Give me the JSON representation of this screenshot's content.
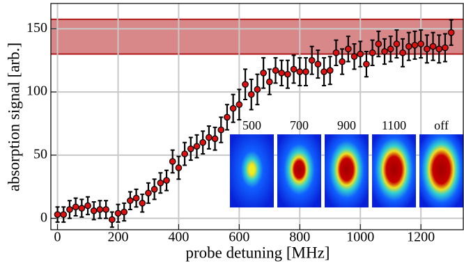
{
  "chart_data": {
    "type": "errorbar-scatter",
    "x_label": "probe detuning [MHz]",
    "y_label": "absorption signal [arb.]",
    "xlim": [
      -22,
      1340
    ],
    "ylim": [
      -9,
      170
    ],
    "xticks": [
      0,
      200,
      400,
      600,
      800,
      1000,
      1200
    ],
    "yticks": [
      0,
      50,
      100,
      150
    ],
    "grid": true,
    "band": {
      "ymin": 130,
      "ymax": 157.5,
      "color": "#d9888a",
      "edge_color": "#b01818"
    },
    "series": [
      {
        "color": "#e01010",
        "x": [
          0,
          20,
          40,
          60,
          80,
          100,
          120,
          140,
          160,
          180,
          200,
          220,
          240,
          260,
          280,
          300,
          320,
          340,
          360,
          380,
          400,
          420,
          440,
          460,
          480,
          500,
          520,
          540,
          560,
          580,
          600,
          620,
          640,
          660,
          680,
          700,
          720,
          740,
          760,
          780,
          800,
          820,
          840,
          860,
          880,
          900,
          920,
          940,
          960,
          980,
          1000,
          1020,
          1040,
          1060,
          1080,
          1100,
          1120,
          1140,
          1160,
          1180,
          1200,
          1220,
          1240,
          1260,
          1280,
          1300
        ],
        "values": [
          3,
          3,
          7,
          9,
          8,
          10,
          6,
          7,
          7,
          -1,
          4,
          5,
          14,
          16,
          12,
          20,
          23,
          28,
          30,
          45,
          40,
          51,
          55,
          57,
          60,
          64,
          63,
          70,
          80,
          87,
          90,
          106,
          98,
          102,
          115,
          108,
          117,
          115,
          114,
          118,
          116,
          116,
          125,
          122,
          116,
          117,
          131,
          124,
          134,
          128,
          130,
          122,
          131,
          138,
          132,
          134,
          138,
          131,
          136,
          137,
          138,
          134,
          136,
          134,
          135,
          147
        ],
        "errors": [
          6,
          6,
          7,
          7,
          7,
          7,
          7,
          7,
          7,
          6,
          7,
          7,
          7,
          7,
          7,
          8,
          8,
          8,
          8,
          9,
          9,
          9,
          9,
          9,
          9,
          9,
          9,
          10,
          10,
          11,
          12,
          12,
          12,
          12,
          12,
          10,
          10,
          10,
          11,
          11,
          11,
          11,
          11,
          11,
          11,
          11,
          10,
          10,
          10,
          10,
          10,
          10,
          10,
          10,
          10,
          10,
          11,
          11,
          11,
          11,
          11,
          11,
          11,
          11,
          11,
          10
        ]
      }
    ],
    "insets": {
      "labels": [
        "500",
        "700",
        "900",
        "1100",
        "off"
      ]
    }
  }
}
